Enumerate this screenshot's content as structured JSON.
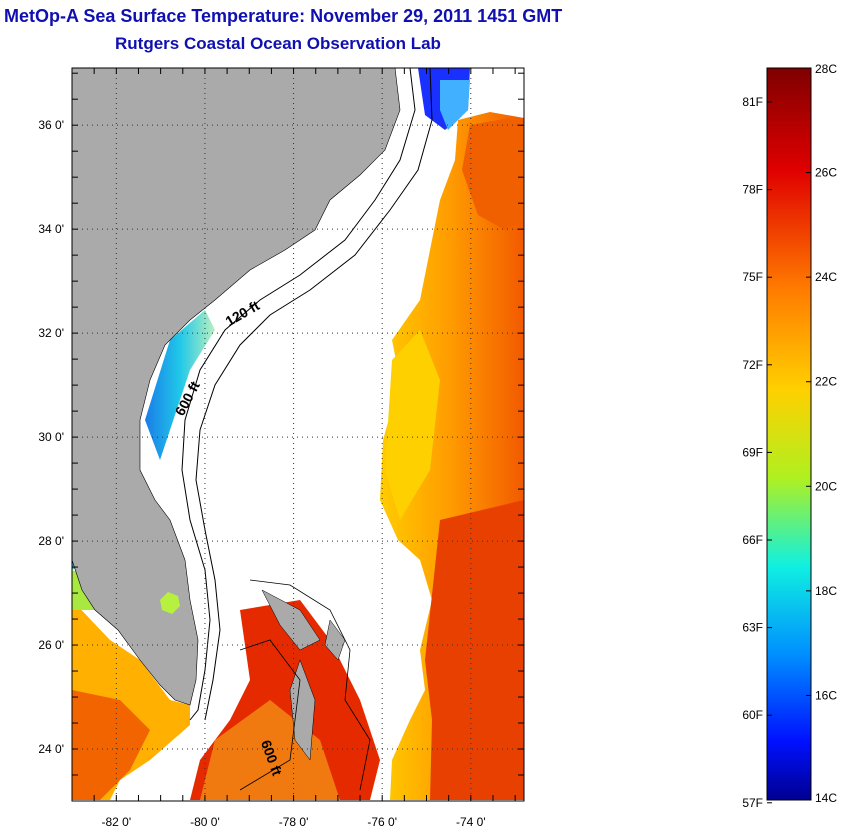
{
  "header": {
    "title": "MetOp-A Sea Surface Temperature:  November 29, 2011 1451 GMT",
    "subtitle": "Rutgers Coastal Ocean Observation Lab"
  },
  "map": {
    "lat_range": [
      23,
      37.1
    ],
    "lon_range": [
      -83,
      -72.8
    ],
    "lat_ticks": [
      {
        "value": 24,
        "label": "24 0'"
      },
      {
        "value": 26,
        "label": "26 0'"
      },
      {
        "value": 28,
        "label": "28 0'"
      },
      {
        "value": 30,
        "label": "30 0'"
      },
      {
        "value": 32,
        "label": "32 0'"
      },
      {
        "value": 34,
        "label": "34 0'"
      },
      {
        "value": 36,
        "label": "36 0'"
      }
    ],
    "lon_ticks": [
      {
        "value": -82,
        "label": "-82 0'"
      },
      {
        "value": -80,
        "label": "-80 0'"
      },
      {
        "value": -78,
        "label": "-78 0'"
      },
      {
        "value": -76,
        "label": "-76 0'"
      },
      {
        "value": -74,
        "label": "-74 0'"
      }
    ],
    "contours": [
      {
        "label": "120 ft",
        "lon": -79.1,
        "lat": 32.3
      },
      {
        "label": "600 ft",
        "lon": -80.3,
        "lat": 30.7
      },
      {
        "label": "600 ft",
        "lon": -78.6,
        "lat": 23.8
      }
    ],
    "land_color": "#aaaaaa",
    "grid": "dotted"
  },
  "colorbar": {
    "celsius": [
      "28C",
      "26C",
      "24C",
      "22C",
      "20C",
      "18C",
      "16C",
      "14C"
    ],
    "fahrenheit": [
      "81F",
      "78F",
      "75F",
      "72F",
      "69F",
      "66F",
      "63F",
      "60F",
      "57F"
    ],
    "colors": [
      "#7f0000",
      "#e00000",
      "#ff7a00",
      "#f2e200",
      "#30f0c0",
      "#00a0ff",
      "#0030ff",
      "#00008f"
    ]
  }
}
